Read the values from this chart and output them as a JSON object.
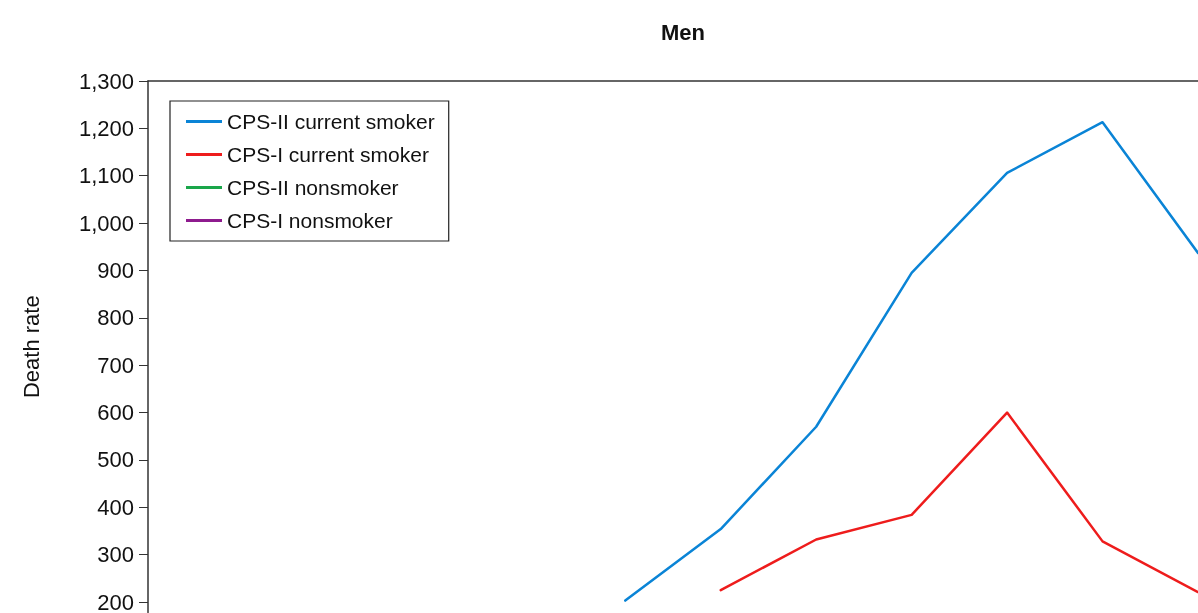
{
  "chart_data": {
    "type": "line",
    "title": "Men",
    "ylabel": "Death rate",
    "categories": [
      null,
      null,
      null,
      null,
      null,
      null,
      null,
      null,
      null,
      null,
      null,
      null
    ],
    "series": [
      {
        "name": "CPS-II current smoker",
        "color": "#0a84d6",
        "values": [
          null,
          null,
          null,
          null,
          null,
          203,
          354,
          570,
          895,
          1106,
          1213,
          937
        ]
      },
      {
        "name": "CPS-I current smoker",
        "color": "#ee1c1c",
        "values": [
          null,
          null,
          null,
          null,
          null,
          null,
          225,
          332,
          384,
          600,
          328,
          221
        ]
      },
      {
        "name": "CPS-II nonsmoker",
        "color": "#1aa64a",
        "values": [
          null,
          null,
          null,
          null,
          null,
          null,
          null,
          null,
          null,
          null,
          null,
          null
        ]
      },
      {
        "name": "CPS-I nonsmoker",
        "color": "#8e1b8e",
        "values": [
          null,
          null,
          null,
          null,
          null,
          null,
          null,
          null,
          null,
          null,
          null,
          null
        ]
      }
    ],
    "ylim": [
      178,
      1300
    ],
    "yticks": [
      200,
      300,
      400,
      500,
      600,
      700,
      800,
      900,
      {
        "value": 1000,
        "label": "1,000"
      },
      {
        "value": 1100,
        "label": "1,100"
      },
      {
        "value": 1200,
        "label": "1,200"
      },
      {
        "value": 1300,
        "label": "1,300"
      }
    ],
    "grid": false,
    "legend": "top left",
    "marker": "none",
    "line_style": "solid",
    "tick_labels": "y"
  }
}
